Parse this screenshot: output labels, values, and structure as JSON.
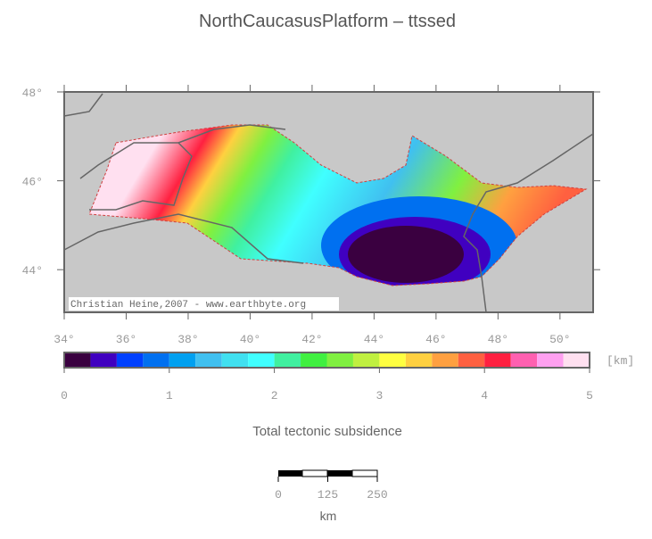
{
  "title": "NorthCaucasusPlatform – ttssed",
  "map": {
    "credit": "Christian Heine,2007 - www.earthbyte.org",
    "lon_range": [
      34,
      51.07
    ],
    "lat_range": [
      43.04,
      48
    ],
    "lon_ticks": [
      {
        "value": 34,
        "label": "34°"
      },
      {
        "value": 36,
        "label": "36°"
      },
      {
        "value": 38,
        "label": "38°"
      },
      {
        "value": 40,
        "label": "40°"
      },
      {
        "value": 42,
        "label": "42°"
      },
      {
        "value": 44,
        "label": "44°"
      },
      {
        "value": 46,
        "label": "46°"
      },
      {
        "value": 48,
        "label": "48°"
      },
      {
        "value": 50,
        "label": "50°"
      }
    ],
    "lat_ticks": [
      {
        "value": 44,
        "label": "44°"
      },
      {
        "value": 46,
        "label": "46°"
      },
      {
        "value": 48,
        "label": "48°"
      }
    ]
  },
  "colorbar": {
    "unit": "[km]",
    "label": "Total tectonic subsidence",
    "range": [
      0,
      5
    ],
    "ticks": [
      0,
      1,
      2,
      3,
      4,
      5
    ],
    "colors": [
      "#3a0040",
      "#4000c0",
      "#0040ff",
      "#0070f0",
      "#00a0f0",
      "#40c0f0",
      "#40e0f0",
      "#40ffff",
      "#40f0a0",
      "#40f040",
      "#80f040",
      "#c0f040",
      "#ffff40",
      "#ffd040",
      "#ffa040",
      "#ff6040",
      "#ff2040",
      "#ff60b0",
      "#ffa0f0",
      "#ffe0f0"
    ]
  },
  "scalebar": {
    "range": [
      0,
      250
    ],
    "ticks": [
      0,
      125,
      250
    ],
    "unit": "km"
  }
}
